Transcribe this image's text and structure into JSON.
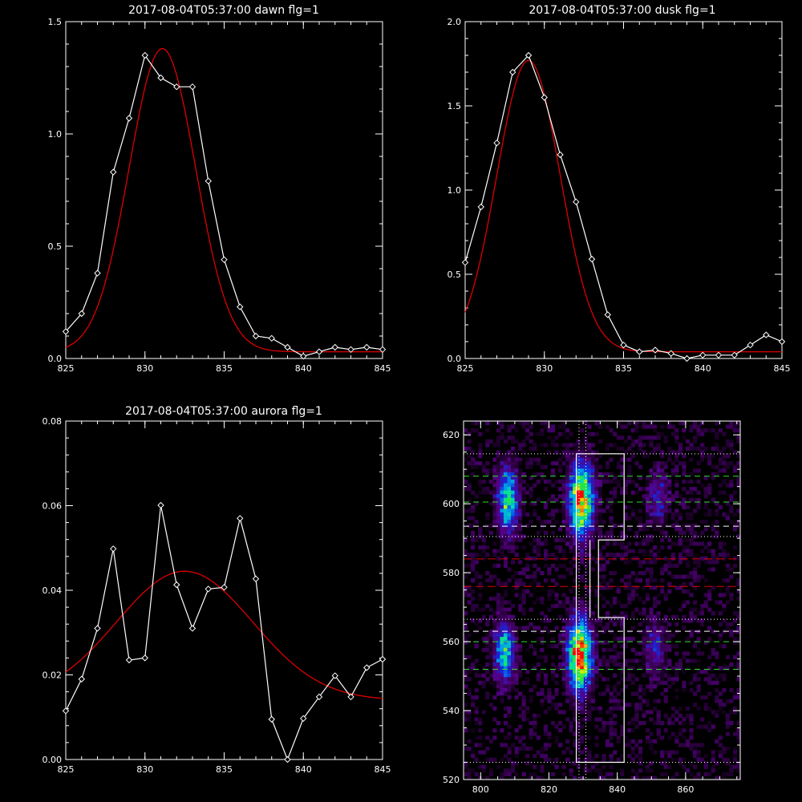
{
  "chart_data": [
    {
      "type": "line",
      "title": "2017-08-04T05:37:00 dawn flg=1",
      "xlim": [
        825,
        845
      ],
      "ylim": [
        0,
        1.5
      ],
      "xticks": [
        825,
        830,
        835,
        840,
        845
      ],
      "yticks": [
        0.0,
        0.5,
        1.0,
        1.5
      ],
      "ytick_labels": [
        "0.0",
        "0.5",
        "1.0",
        "1.5"
      ],
      "series": [
        {
          "role": "measured",
          "color": "#ffffff",
          "marker": "diamond",
          "x": [
            825,
            826,
            827,
            828,
            829,
            830,
            831,
            832,
            833,
            834,
            835,
            836,
            837,
            838,
            839,
            840,
            841,
            842,
            843,
            844,
            845
          ],
          "y": [
            0.12,
            0.2,
            0.38,
            0.83,
            1.07,
            1.35,
            1.25,
            1.21,
            1.21,
            0.79,
            0.44,
            0.23,
            0.1,
            0.09,
            0.05,
            0.01,
            0.03,
            0.05,
            0.04,
            0.05,
            0.04
          ]
        },
        {
          "role": "fit",
          "color": "#dd0000",
          "model": "gaussian",
          "amp": 1.35,
          "center": 831.1,
          "sigma": 2.1,
          "offset": 0.03
        }
      ]
    },
    {
      "type": "line",
      "title": "2017-08-04T05:37:00 dusk flg=1",
      "xlim": [
        825,
        845
      ],
      "ylim": [
        0,
        2.0
      ],
      "xticks": [
        825,
        830,
        835,
        840,
        845
      ],
      "yticks": [
        0.0,
        0.5,
        1.0,
        1.5,
        2.0
      ],
      "ytick_labels": [
        "0.0",
        "0.5",
        "1.0",
        "1.5",
        "2.0"
      ],
      "series": [
        {
          "role": "measured",
          "color": "#ffffff",
          "marker": "diamond",
          "x": [
            825,
            826,
            827,
            828,
            829,
            830,
            831,
            832,
            833,
            834,
            835,
            836,
            837,
            838,
            839,
            840,
            841,
            842,
            843,
            844,
            845
          ],
          "y": [
            0.57,
            0.9,
            1.28,
            1.7,
            1.8,
            1.55,
            1.21,
            0.93,
            0.59,
            0.26,
            0.08,
            0.04,
            0.05,
            0.03,
            0.0,
            0.02,
            0.02,
            0.02,
            0.08,
            0.14,
            0.1
          ]
        },
        {
          "role": "fit",
          "color": "#dd0000",
          "model": "gaussian",
          "amp": 1.73,
          "center": 829.0,
          "sigma": 2.0,
          "offset": 0.04
        }
      ]
    },
    {
      "type": "line",
      "title": "2017-08-04T05:37:00 aurora flg=1",
      "xlim": [
        825,
        845
      ],
      "ylim": [
        0,
        0.08
      ],
      "xticks": [
        825,
        830,
        835,
        840,
        845
      ],
      "yticks": [
        0.0,
        0.02,
        0.04,
        0.06,
        0.08
      ],
      "ytick_labels": [
        "0.00",
        "0.02",
        "0.04",
        "0.06",
        "0.08"
      ],
      "series": [
        {
          "role": "measured",
          "color": "#ffffff",
          "marker": "diamond",
          "x": [
            825,
            826,
            827,
            828,
            829,
            830,
            831,
            832,
            833,
            834,
            835,
            836,
            837,
            838,
            839,
            840,
            841,
            842,
            843,
            844,
            845
          ],
          "y": [
            0.0115,
            0.019,
            0.031,
            0.0498,
            0.0235,
            0.024,
            0.0601,
            0.0413,
            0.031,
            0.0403,
            0.0407,
            0.057,
            0.0427,
            0.0095,
            0.0,
            0.0097,
            0.0148,
            0.0198,
            0.0148,
            0.0217,
            0.0237
          ]
        },
        {
          "role": "fit",
          "color": "#dd0000",
          "model": "gaussian",
          "amp": 0.0305,
          "center": 832.5,
          "sigma": 4.3,
          "offset": 0.014
        }
      ]
    },
    {
      "type": "heatmap",
      "colormap": "rainbow",
      "xlim": [
        795,
        876
      ],
      "ylim": [
        520,
        624
      ],
      "xticks": [
        800,
        820,
        840,
        860
      ],
      "yticks": [
        520,
        540,
        560,
        580,
        600,
        620
      ],
      "blobs": [
        {
          "x": 829.5,
          "y": 601,
          "sx": 2.2,
          "sy": 6.5,
          "amp": 1.0
        },
        {
          "x": 829.0,
          "y": 556,
          "sx": 2.2,
          "sy": 6.5,
          "amp": 1.05
        },
        {
          "x": 808.0,
          "y": 601,
          "sx": 2.0,
          "sy": 6.0,
          "amp": 0.6
        },
        {
          "x": 807.0,
          "y": 557,
          "sx": 1.8,
          "sy": 5.5,
          "amp": 0.6
        },
        {
          "x": 852.0,
          "y": 602,
          "sx": 2.0,
          "sy": 5.0,
          "amp": 0.22
        },
        {
          "x": 851.0,
          "y": 558,
          "sx": 2.0,
          "sy": 5.0,
          "amp": 0.22
        }
      ],
      "overlays": {
        "hlines_white_dotted": [
          614.5,
          590.5,
          566.5,
          525.0
        ],
        "hlines_green_dashed": [
          608.0,
          600.5,
          560.0,
          552.0
        ],
        "hlines_white_dashed": [
          593.5,
          563.0
        ],
        "hlines_red_dashed": [
          584.0,
          576.0
        ],
        "vlines_white_dotted": [
          828.8,
          830.8
        ],
        "region_outline": [
          [
            828,
            525
          ],
          [
            842,
            525
          ],
          [
            842,
            567
          ],
          [
            834.5,
            567
          ],
          [
            834.5,
            589.5
          ],
          [
            842,
            589.5
          ],
          [
            842,
            614.5
          ],
          [
            828,
            614.5
          ]
        ],
        "region_inner_line": [
          [
            832,
            589.5
          ],
          [
            832,
            567
          ]
        ]
      }
    }
  ]
}
